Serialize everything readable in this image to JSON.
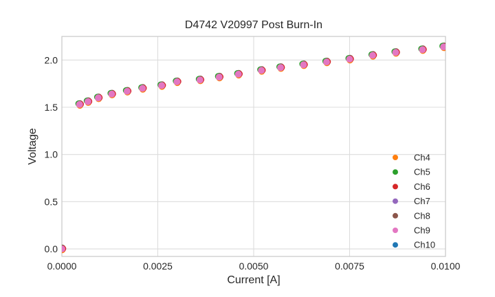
{
  "figure": {
    "background": "#ffffff"
  },
  "chart_data": {
    "type": "scatter",
    "title": "D4742 V20997 Post Burn-In",
    "xlabel": "Current [A]",
    "ylabel": "Voltage",
    "xlim": [
      0.0,
      0.01
    ],
    "ylim": [
      -0.08,
      2.25
    ],
    "xticks": [
      0.0,
      0.0025,
      0.005,
      0.0075,
      0.01
    ],
    "xtick_labels": [
      "0.0000",
      "0.0025",
      "0.0050",
      "0.0075",
      "0.0100"
    ],
    "yticks": [
      0.0,
      0.5,
      1.0,
      1.5,
      2.0
    ],
    "ytick_labels": [
      "0.0",
      "0.5",
      "1.0",
      "1.5",
      "2.0"
    ],
    "grid": true,
    "legend_position": "lower right",
    "series": [
      {
        "name": "Ch4",
        "color": "#ff7f0e"
      },
      {
        "name": "Ch5",
        "color": "#2ca02c"
      },
      {
        "name": "Ch6",
        "color": "#d62728"
      },
      {
        "name": "Ch7",
        "color": "#9467bd"
      },
      {
        "name": "Ch8",
        "color": "#8c564b"
      },
      {
        "name": "Ch9",
        "color": "#e377c2"
      },
      {
        "name": "Ch10",
        "color": "#1f77b4"
      }
    ],
    "series_overlap": true,
    "x": [
      0.0,
      0.00046,
      0.00068,
      0.00095,
      0.0013,
      0.0017,
      0.0021,
      0.0026,
      0.003,
      0.0036,
      0.0041,
      0.0046,
      0.0052,
      0.0057,
      0.0063,
      0.0069,
      0.0075,
      0.0081,
      0.0087,
      0.0094,
      0.00995
    ],
    "y": [
      0.0,
      1.53,
      1.56,
      1.6,
      1.64,
      1.67,
      1.7,
      1.73,
      1.77,
      1.79,
      1.82,
      1.85,
      1.89,
      1.92,
      1.95,
      1.98,
      2.01,
      2.05,
      2.08,
      2.11,
      2.14
    ],
    "colors": {
      "grid": "#dcdcdc",
      "spine": "#c9c9c9",
      "text": "#262626"
    }
  }
}
